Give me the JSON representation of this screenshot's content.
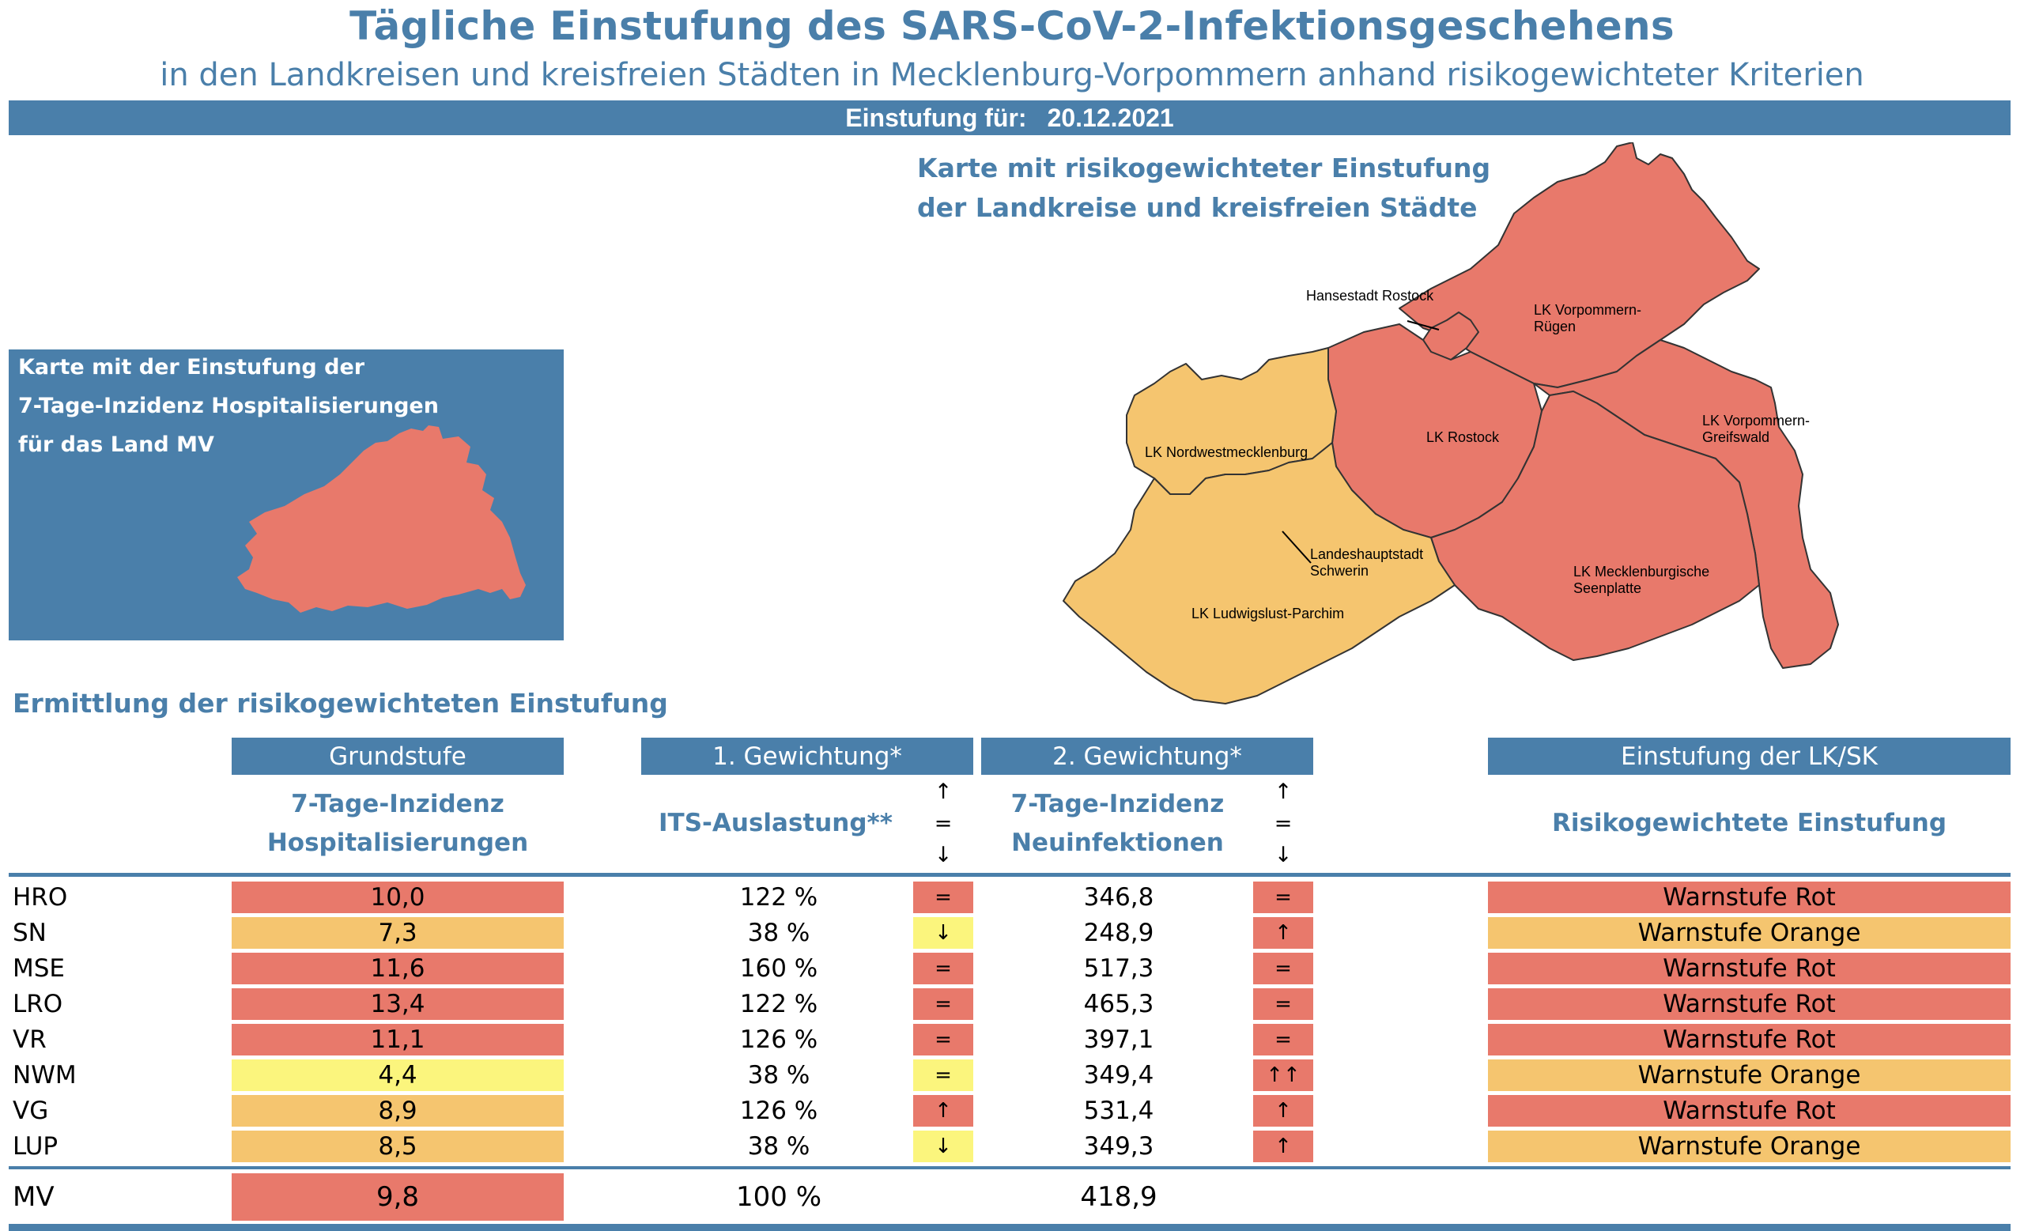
{
  "header": {
    "title": "Tägliche Einstufung des SARS-CoV-2-Infektionsgeschehens",
    "subtitle": "in den Landkreisen und kreisfreien Städten in Mecklenburg-Vorpommern anhand risikogewichteter Kriterien",
    "date_label": "Einstufung für:",
    "date_value": "20.12.2021"
  },
  "colors": {
    "blue": "#4a7faa",
    "red": "#e8796b",
    "orange": "#f5c56f",
    "yellow": "#fbf57d"
  },
  "small_map": {
    "lines": [
      "Karte mit der Einstufung der",
      "7-Tage-Inzidenz Hospitalisierungen",
      "für das Land MV"
    ],
    "fill": "red"
  },
  "big_map": {
    "title_lines": [
      "Karte mit risikogewichteter Einstufung",
      "der Landkreise und kreisfreien Städte"
    ],
    "regions": [
      {
        "name": "Hansestadt Rostock",
        "fill": "red"
      },
      {
        "name": "LK Vorpommern-Rügen",
        "fill": "red"
      },
      {
        "name": "LK Rostock",
        "fill": "red"
      },
      {
        "name": "LK Vorpommern-Greifswald",
        "fill": "red"
      },
      {
        "name": "LK Nordwestmecklenburg",
        "fill": "orange"
      },
      {
        "name": "Landeshauptstadt Schwerin",
        "fill": "orange"
      },
      {
        "name": "LK Mecklenburgische Seenplatte",
        "fill": "red"
      },
      {
        "name": "LK Ludwigslust-Parchim",
        "fill": "orange"
      }
    ],
    "labels": {
      "hro": "Hansestadt Rostock",
      "vr_1": "LK Vorpommern-",
      "vr_2": "Rügen",
      "lro": "LK Rostock",
      "vg_1": "LK Vorpommern-",
      "vg_2": "Greifswald",
      "nwm": "LK Nordwestmecklenburg",
      "sn_1": "Landeshauptstadt",
      "sn_2": "Schwerin",
      "mse_1": "LK Mecklenburgische",
      "mse_2": "Seenplatte",
      "lup": "LK Ludwigslust-Parchim"
    }
  },
  "table": {
    "section_title": "Ermittlung der risikogewichteten Einstufung",
    "headers": {
      "grundstufe": "Grundstufe",
      "gewichtung1": "1. Gewichtung*",
      "gewichtung2": "2. Gewichtung*",
      "einstufung": "Einstufung der LK/SK"
    },
    "subheaders": {
      "hosp_1": "7-Tage-Inzidenz",
      "hosp_2": "Hospitalisierungen",
      "its": "ITS-Auslastung**",
      "inz_1": "7-Tage-Inzidenz",
      "inz_2": "Neuinfektionen",
      "risk": "Risikogewichtete Einstufung"
    },
    "trend_legend": [
      "↑",
      "=",
      "↓"
    ],
    "rows": [
      {
        "code": "HRO",
        "hosp": "10,0",
        "hosp_color": "red",
        "its": "122 %",
        "its_trend": "=",
        "its_color": "red",
        "inz": "346,8",
        "inz_trend": "=",
        "inz_color": "red",
        "level": "Warnstufe Rot",
        "level_color": "red"
      },
      {
        "code": "SN",
        "hosp": "7,3",
        "hosp_color": "orange",
        "its": "38 %",
        "its_trend": "↓",
        "its_color": "yellow",
        "inz": "248,9",
        "inz_trend": "↑",
        "inz_color": "red",
        "level": "Warnstufe Orange",
        "level_color": "orange"
      },
      {
        "code": "MSE",
        "hosp": "11,6",
        "hosp_color": "red",
        "its": "160 %",
        "its_trend": "=",
        "its_color": "red",
        "inz": "517,3",
        "inz_trend": "=",
        "inz_color": "red",
        "level": "Warnstufe Rot",
        "level_color": "red"
      },
      {
        "code": "LRO",
        "hosp": "13,4",
        "hosp_color": "red",
        "its": "122 %",
        "its_trend": "=",
        "its_color": "red",
        "inz": "465,3",
        "inz_trend": "=",
        "inz_color": "red",
        "level": "Warnstufe Rot",
        "level_color": "red"
      },
      {
        "code": "VR",
        "hosp": "11,1",
        "hosp_color": "red",
        "its": "126 %",
        "its_trend": "=",
        "its_color": "red",
        "inz": "397,1",
        "inz_trend": "=",
        "inz_color": "red",
        "level": "Warnstufe Rot",
        "level_color": "red"
      },
      {
        "code": "NWM",
        "hosp": "4,4",
        "hosp_color": "yellow",
        "its": "38 %",
        "its_trend": "=",
        "its_color": "yellow",
        "inz": "349,4",
        "inz_trend": "↑↑",
        "inz_color": "red",
        "level": "Warnstufe Orange",
        "level_color": "orange"
      },
      {
        "code": "VG",
        "hosp": "8,9",
        "hosp_color": "orange",
        "its": "126 %",
        "its_trend": "↑",
        "its_color": "red",
        "inz": "531,4",
        "inz_trend": "↑",
        "inz_color": "red",
        "level": "Warnstufe Rot",
        "level_color": "red"
      },
      {
        "code": "LUP",
        "hosp": "8,5",
        "hosp_color": "orange",
        "its": "38 %",
        "its_trend": "↓",
        "its_color": "yellow",
        "inz": "349,3",
        "inz_trend": "↑",
        "inz_color": "red",
        "level": "Warnstufe Orange",
        "level_color": "orange"
      }
    ],
    "total": {
      "code": "MV",
      "hosp": "9,8",
      "hosp_color": "red",
      "its": "100 %",
      "inz": "418,9"
    }
  }
}
